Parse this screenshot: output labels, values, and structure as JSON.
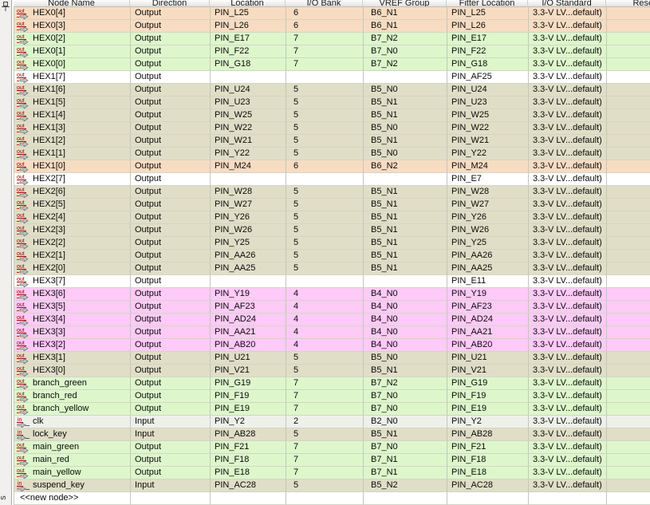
{
  "panel": {
    "autohide_pin": "pin-icon",
    "side_tab_label_fragment": "s"
  },
  "table": {
    "columns": [
      {
        "label": "Node Name"
      },
      {
        "label": "Direction"
      },
      {
        "label": "Location"
      },
      {
        "label": "I/O Bank"
      },
      {
        "label": "VREF Group"
      },
      {
        "label": "Fitter Location"
      },
      {
        "label": "I/O Standard"
      },
      {
        "label": "Reserved"
      }
    ],
    "bank_colors": {
      "2": "#eef1ea",
      "4": "#fecaf7",
      "5": "#e0dec6",
      "6": "#f8dcc2",
      "7": "#ddf7cb",
      "none": "#ffffff"
    },
    "new_node_label": "<<new node>>",
    "rows": [
      {
        "name": "HEX0[4]",
        "icon": "output-pin-icon",
        "direction": "Output",
        "location": "PIN_L25",
        "bank": "6",
        "vref": "B6_N1",
        "fitter": "PIN_L25",
        "io_standard": "3.3-V LV...default)",
        "reserved": "",
        "color": "6"
      },
      {
        "name": "HEX0[3]",
        "icon": "output-pin-icon",
        "direction": "Output",
        "location": "PIN_L26",
        "bank": "6",
        "vref": "B6_N1",
        "fitter": "PIN_L26",
        "io_standard": "3.3-V LV...default)",
        "reserved": "",
        "color": "6"
      },
      {
        "name": "HEX0[2]",
        "icon": "output-pin-icon",
        "direction": "Output",
        "location": "PIN_E17",
        "bank": "7",
        "vref": "B7_N2",
        "fitter": "PIN_E17",
        "io_standard": "3.3-V LV...default)",
        "reserved": "",
        "color": "7"
      },
      {
        "name": "HEX0[1]",
        "icon": "output-pin-icon",
        "direction": "Output",
        "location": "PIN_F22",
        "bank": "7",
        "vref": "B7_N0",
        "fitter": "PIN_F22",
        "io_standard": "3.3-V LV...default)",
        "reserved": "",
        "color": "7"
      },
      {
        "name": "HEX0[0]",
        "icon": "output-pin-icon",
        "direction": "Output",
        "location": "PIN_G18",
        "bank": "7",
        "vref": "B7_N2",
        "fitter": "PIN_G18",
        "io_standard": "3.3-V LV...default)",
        "reserved": "",
        "color": "7"
      },
      {
        "name": "HEX1[7]",
        "icon": "output-pin-icon",
        "direction": "Output",
        "location": "",
        "bank": "",
        "vref": "",
        "fitter": "PIN_AF25",
        "io_standard": "3.3-V LV...default)",
        "reserved": "",
        "color": "none"
      },
      {
        "name": "HEX1[6]",
        "icon": "output-pin-icon",
        "direction": "Output",
        "location": "PIN_U24",
        "bank": "5",
        "vref": "B5_N0",
        "fitter": "PIN_U24",
        "io_standard": "3.3-V LV...default)",
        "reserved": "",
        "color": "5"
      },
      {
        "name": "HEX1[5]",
        "icon": "output-pin-icon",
        "direction": "Output",
        "location": "PIN_U23",
        "bank": "5",
        "vref": "B5_N1",
        "fitter": "PIN_U23",
        "io_standard": "3.3-V LV...default)",
        "reserved": "",
        "color": "5"
      },
      {
        "name": "HEX1[4]",
        "icon": "output-pin-icon",
        "direction": "Output",
        "location": "PIN_W25",
        "bank": "5",
        "vref": "B5_N1",
        "fitter": "PIN_W25",
        "io_standard": "3.3-V LV...default)",
        "reserved": "",
        "color": "5"
      },
      {
        "name": "HEX1[3]",
        "icon": "output-pin-icon",
        "direction": "Output",
        "location": "PIN_W22",
        "bank": "5",
        "vref": "B5_N0",
        "fitter": "PIN_W22",
        "io_standard": "3.3-V LV...default)",
        "reserved": "",
        "color": "5"
      },
      {
        "name": "HEX1[2]",
        "icon": "output-pin-icon",
        "direction": "Output",
        "location": "PIN_W21",
        "bank": "5",
        "vref": "B5_N1",
        "fitter": "PIN_W21",
        "io_standard": "3.3-V LV...default)",
        "reserved": "",
        "color": "5"
      },
      {
        "name": "HEX1[1]",
        "icon": "output-pin-icon",
        "direction": "Output",
        "location": "PIN_Y22",
        "bank": "5",
        "vref": "B5_N0",
        "fitter": "PIN_Y22",
        "io_standard": "3.3-V LV...default)",
        "reserved": "",
        "color": "5"
      },
      {
        "name": "HEX1[0]",
        "icon": "output-pin-icon",
        "direction": "Output",
        "location": "PIN_M24",
        "bank": "6",
        "vref": "B6_N2",
        "fitter": "PIN_M24",
        "io_standard": "3.3-V LV...default)",
        "reserved": "",
        "color": "6"
      },
      {
        "name": "HEX2[7]",
        "icon": "output-pin-icon",
        "direction": "Output",
        "location": "",
        "bank": "",
        "vref": "",
        "fitter": "PIN_E7",
        "io_standard": "3.3-V LV...default)",
        "reserved": "",
        "color": "none"
      },
      {
        "name": "HEX2[6]",
        "icon": "output-pin-icon",
        "direction": "Output",
        "location": "PIN_W28",
        "bank": "5",
        "vref": "B5_N1",
        "fitter": "PIN_W28",
        "io_standard": "3.3-V LV...default)",
        "reserved": "",
        "color": "5"
      },
      {
        "name": "HEX2[5]",
        "icon": "output-pin-icon",
        "direction": "Output",
        "location": "PIN_W27",
        "bank": "5",
        "vref": "B5_N1",
        "fitter": "PIN_W27",
        "io_standard": "3.3-V LV...default)",
        "reserved": "",
        "color": "5"
      },
      {
        "name": "HEX2[4]",
        "icon": "output-pin-icon",
        "direction": "Output",
        "location": "PIN_Y26",
        "bank": "5",
        "vref": "B5_N1",
        "fitter": "PIN_Y26",
        "io_standard": "3.3-V LV...default)",
        "reserved": "",
        "color": "5"
      },
      {
        "name": "HEX2[3]",
        "icon": "output-pin-icon",
        "direction": "Output",
        "location": "PIN_W26",
        "bank": "5",
        "vref": "B5_N1",
        "fitter": "PIN_W26",
        "io_standard": "3.3-V LV...default)",
        "reserved": "",
        "color": "5"
      },
      {
        "name": "HEX2[2]",
        "icon": "output-pin-icon",
        "direction": "Output",
        "location": "PIN_Y25",
        "bank": "5",
        "vref": "B5_N1",
        "fitter": "PIN_Y25",
        "io_standard": "3.3-V LV...default)",
        "reserved": "",
        "color": "5"
      },
      {
        "name": "HEX2[1]",
        "icon": "output-pin-icon",
        "direction": "Output",
        "location": "PIN_AA26",
        "bank": "5",
        "vref": "B5_N1",
        "fitter": "PIN_AA26",
        "io_standard": "3.3-V LV...default)",
        "reserved": "",
        "color": "5"
      },
      {
        "name": "HEX2[0]",
        "icon": "output-pin-icon",
        "direction": "Output",
        "location": "PIN_AA25",
        "bank": "5",
        "vref": "B5_N1",
        "fitter": "PIN_AA25",
        "io_standard": "3.3-V LV...default)",
        "reserved": "",
        "color": "5"
      },
      {
        "name": "HEX3[7]",
        "icon": "output-pin-icon",
        "direction": "Output",
        "location": "",
        "bank": "",
        "vref": "",
        "fitter": "PIN_E11",
        "io_standard": "3.3-V LV...default)",
        "reserved": "",
        "color": "none"
      },
      {
        "name": "HEX3[6]",
        "icon": "output-pin-icon",
        "direction": "Output",
        "location": "PIN_Y19",
        "bank": "4",
        "vref": "B4_N0",
        "fitter": "PIN_Y19",
        "io_standard": "3.3-V LV...default)",
        "reserved": "",
        "color": "4"
      },
      {
        "name": "HEX3[5]",
        "icon": "output-pin-icon",
        "direction": "Output",
        "location": "PIN_AF23",
        "bank": "4",
        "vref": "B4_N0",
        "fitter": "PIN_AF23",
        "io_standard": "3.3-V LV...default)",
        "reserved": "",
        "color": "4"
      },
      {
        "name": "HEX3[4]",
        "icon": "output-pin-icon",
        "direction": "Output",
        "location": "PIN_AD24",
        "bank": "4",
        "vref": "B4_N0",
        "fitter": "PIN_AD24",
        "io_standard": "3.3-V LV...default)",
        "reserved": "",
        "color": "4"
      },
      {
        "name": "HEX3[3]",
        "icon": "output-pin-icon",
        "direction": "Output",
        "location": "PIN_AA21",
        "bank": "4",
        "vref": "B4_N0",
        "fitter": "PIN_AA21",
        "io_standard": "3.3-V LV...default)",
        "reserved": "",
        "color": "4"
      },
      {
        "name": "HEX3[2]",
        "icon": "output-pin-icon",
        "direction": "Output",
        "location": "PIN_AB20",
        "bank": "4",
        "vref": "B4_N0",
        "fitter": "PIN_AB20",
        "io_standard": "3.3-V LV...default)",
        "reserved": "",
        "color": "4"
      },
      {
        "name": "HEX3[1]",
        "icon": "output-pin-icon",
        "direction": "Output",
        "location": "PIN_U21",
        "bank": "5",
        "vref": "B5_N0",
        "fitter": "PIN_U21",
        "io_standard": "3.3-V LV...default)",
        "reserved": "",
        "color": "5"
      },
      {
        "name": "HEX3[0]",
        "icon": "output-pin-icon",
        "direction": "Output",
        "location": "PIN_V21",
        "bank": "5",
        "vref": "B5_N1",
        "fitter": "PIN_V21",
        "io_standard": "3.3-V LV...default)",
        "reserved": "",
        "color": "5"
      },
      {
        "name": "branch_green",
        "icon": "output-pin-icon",
        "direction": "Output",
        "location": "PIN_G19",
        "bank": "7",
        "vref": "B7_N2",
        "fitter": "PIN_G19",
        "io_standard": "3.3-V LV...default)",
        "reserved": "",
        "color": "7"
      },
      {
        "name": "branch_red",
        "icon": "output-pin-icon",
        "direction": "Output",
        "location": "PIN_F19",
        "bank": "7",
        "vref": "B7_N0",
        "fitter": "PIN_F19",
        "io_standard": "3.3-V LV...default)",
        "reserved": "",
        "color": "7"
      },
      {
        "name": "branch_yellow",
        "icon": "output-pin-icon",
        "direction": "Output",
        "location": "PIN_E19",
        "bank": "7",
        "vref": "B7_N0",
        "fitter": "PIN_E19",
        "io_standard": "3.3-V LV...default)",
        "reserved": "",
        "color": "7"
      },
      {
        "name": "clk",
        "icon": "input-pin-icon",
        "direction": "Input",
        "location": "PIN_Y2",
        "bank": "2",
        "vref": "B2_N0",
        "fitter": "PIN_Y2",
        "io_standard": "3.3-V LV...default)",
        "reserved": "",
        "color": "2"
      },
      {
        "name": "lock_key",
        "icon": "input-pin-icon",
        "direction": "Input",
        "location": "PIN_AB28",
        "bank": "5",
        "vref": "B5_N1",
        "fitter": "PIN_AB28",
        "io_standard": "3.3-V LV...default)",
        "reserved": "",
        "color": "5"
      },
      {
        "name": "main_green",
        "icon": "output-pin-icon",
        "direction": "Output",
        "location": "PIN_F21",
        "bank": "7",
        "vref": "B7_N0",
        "fitter": "PIN_F21",
        "io_standard": "3.3-V LV...default)",
        "reserved": "",
        "color": "7"
      },
      {
        "name": "main_red",
        "icon": "output-pin-icon",
        "direction": "Output",
        "location": "PIN_F18",
        "bank": "7",
        "vref": "B7_N1",
        "fitter": "PIN_F18",
        "io_standard": "3.3-V LV...default)",
        "reserved": "",
        "color": "7"
      },
      {
        "name": "main_yellow",
        "icon": "output-pin-icon",
        "direction": "Output",
        "location": "PIN_E18",
        "bank": "7",
        "vref": "B7_N1",
        "fitter": "PIN_E18",
        "io_standard": "3.3-V LV...default)",
        "reserved": "",
        "color": "7"
      },
      {
        "name": "suspend_key",
        "icon": "input-pin-icon",
        "direction": "Input",
        "location": "PIN_AC28",
        "bank": "5",
        "vref": "B5_N2",
        "fitter": "PIN_AC28",
        "io_standard": "3.3-V LV...default)",
        "reserved": "",
        "color": "5"
      },
      {
        "name": "<<new node>>",
        "icon": null,
        "direction": "",
        "location": "",
        "bank": "",
        "vref": "",
        "fitter": "",
        "io_standard": "",
        "reserved": "",
        "color": "none"
      }
    ]
  }
}
